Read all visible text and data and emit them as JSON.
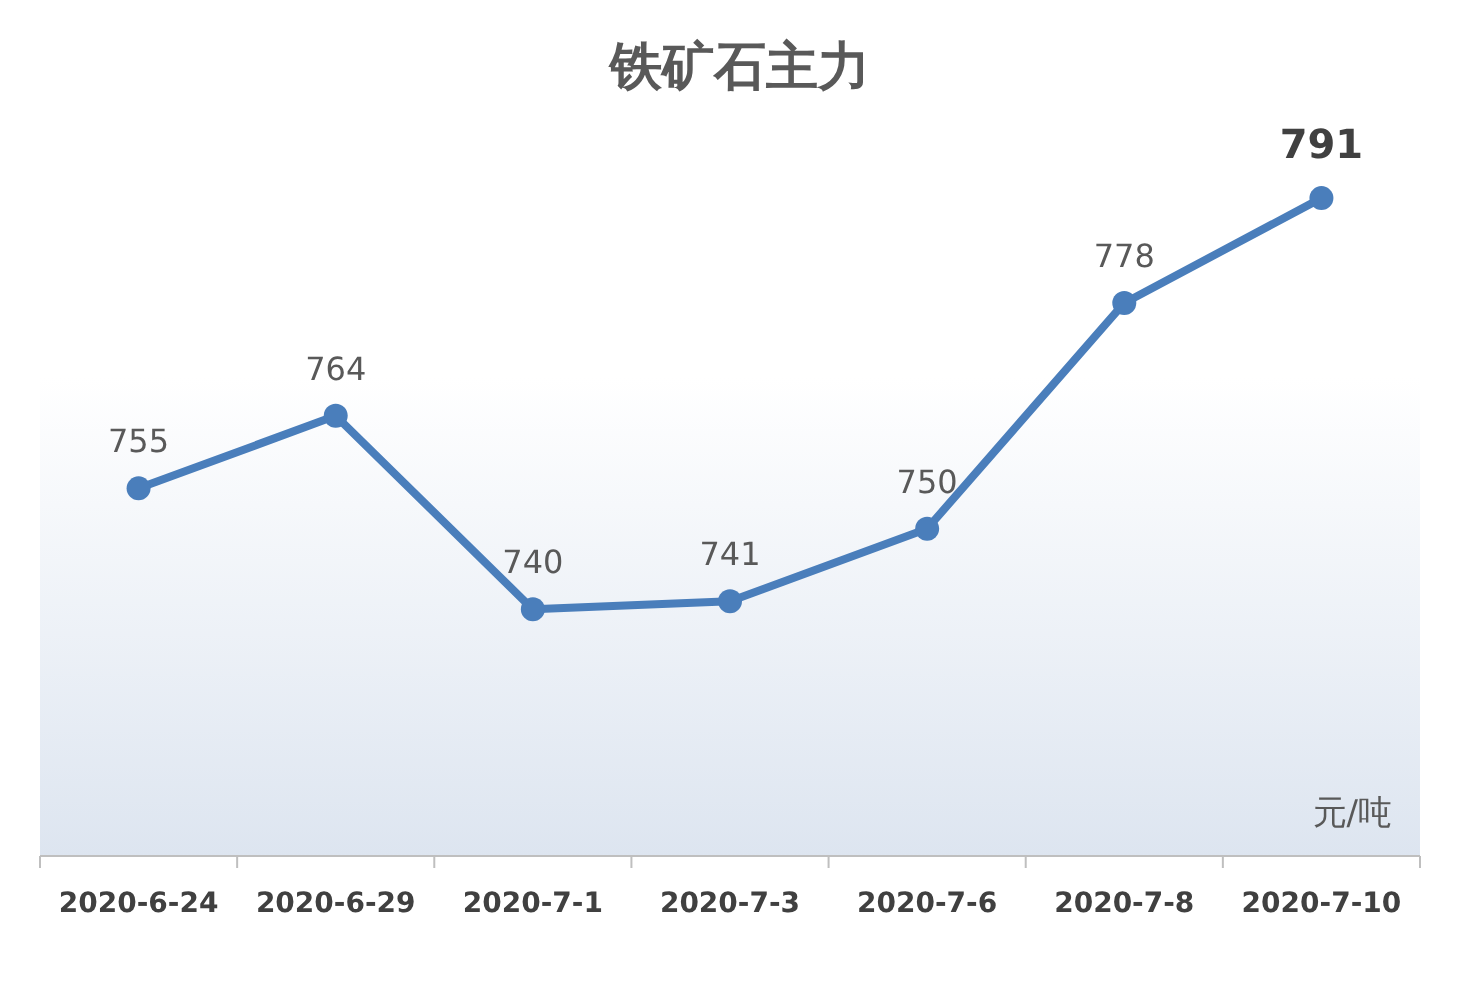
{
  "chart_data": {
    "type": "line",
    "title": "铁矿石主力",
    "categories": [
      "2020-6-24",
      "2020-6-29",
      "2020-7-1",
      "2020-7-3",
      "2020-7-6",
      "2020-7-8",
      "2020-7-10"
    ],
    "series": [
      {
        "color": "#4a7ebb",
        "values": [
          755,
          764,
          740,
          741,
          750,
          778,
          791
        ]
      }
    ],
    "data_labels": true,
    "marker": "circle",
    "line_style": "solid",
    "annotations": [
      "元/吨"
    ]
  }
}
